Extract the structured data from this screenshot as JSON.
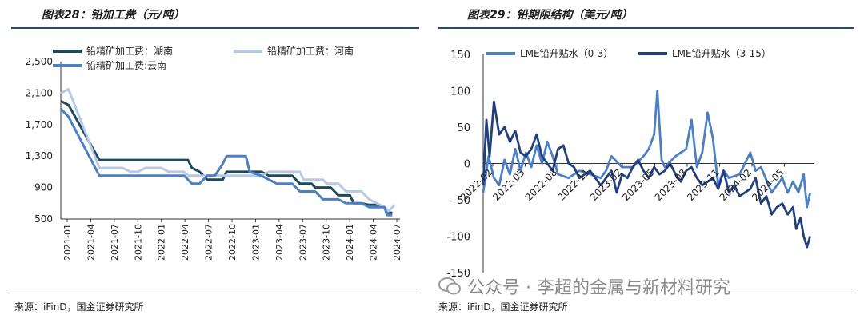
{
  "left": {
    "title": "图表28：铅加工费（元/吨）",
    "source": "来源：iFinD，国金证券研究所"
  },
  "right": {
    "title": "图表29：铅期限结构（美元/吨）",
    "source": "来源：iFinD，国金证券研究所"
  },
  "watermark": {
    "text": "公众号 · 李超的金属与新材料研究"
  },
  "chart_data": [
    {
      "type": "line",
      "title": "图表28：铅加工费（元/吨）",
      "ylim": [
        500,
        2500
      ],
      "yticks": [
        "500",
        "900",
        "1,300",
        "1,700",
        "2,100",
        "2,500"
      ],
      "ytick_values": [
        500,
        900,
        1300,
        1700,
        2100,
        2500
      ],
      "xlim": [
        0,
        44
      ],
      "xticks": [
        "2021-01",
        "2021-04",
        "2021-07",
        "2021-10",
        "2022-01",
        "2022-04",
        "2022-07",
        "2022-10",
        "2023-01",
        "2023-04",
        "2023-07",
        "2023-10",
        "2024-01",
        "2024-04",
        "2024-07"
      ],
      "legend": [
        "铅精矿加工费：湖南",
        "铅精矿加工费：河南",
        "铅精矿加工费:云南"
      ],
      "series": [
        {
          "name": "铅精矿加工费：湖南",
          "color": "#1b4a5c",
          "points": [
            [
              0,
              2000
            ],
            [
              1,
              1950
            ],
            [
              5,
              1250
            ],
            [
              8,
              1250
            ],
            [
              10,
              1250
            ],
            [
              12,
              1250
            ],
            [
              16.5,
              1250
            ],
            [
              17,
              1150
            ],
            [
              18,
              1100
            ],
            [
              19,
              1000
            ],
            [
              21,
              1000
            ],
            [
              21.5,
              1100
            ],
            [
              26,
              1100
            ],
            [
              27,
              1050
            ],
            [
              30,
              1050
            ],
            [
              31,
              950
            ],
            [
              32.5,
              950
            ],
            [
              33,
              900
            ],
            [
              35,
              900
            ],
            [
              36,
              800
            ],
            [
              37.5,
              800
            ],
            [
              38,
              700
            ],
            [
              39,
              700
            ],
            [
              40,
              680
            ],
            [
              41,
              680
            ],
            [
              42,
              650
            ],
            [
              42.5,
              580
            ],
            [
              43,
              580
            ]
          ]
        },
        {
          "name": "铅精矿加工费：河南",
          "color": "#b7c9ea",
          "points": [
            [
              0,
              2100
            ],
            [
              1,
              2150
            ],
            [
              5,
              1150
            ],
            [
              8,
              1150
            ],
            [
              9,
              1100
            ],
            [
              10,
              1100
            ],
            [
              11,
              1150
            ],
            [
              13,
              1150
            ],
            [
              14,
              1100
            ],
            [
              16,
              1100
            ],
            [
              16.5,
              1050
            ],
            [
              26,
              1050
            ],
            [
              27,
              1100
            ],
            [
              31,
              1100
            ],
            [
              31.5,
              1000
            ],
            [
              34,
              1000
            ],
            [
              34.5,
              950
            ],
            [
              36,
              950
            ],
            [
              37,
              850
            ],
            [
              39,
              850
            ],
            [
              39.5,
              800
            ],
            [
              40,
              750
            ],
            [
              41,
              700
            ],
            [
              42,
              650
            ],
            [
              42.5,
              600
            ],
            [
              43.3,
              680
            ]
          ]
        },
        {
          "name": "铅精矿加工费:云南",
          "color": "#4a7fcc",
          "points": [
            [
              0,
              1900
            ],
            [
              1,
              1800
            ],
            [
              5,
              1050
            ],
            [
              8,
              1050
            ],
            [
              16,
              1050
            ],
            [
              17,
              950
            ],
            [
              18,
              950
            ],
            [
              19,
              1050
            ],
            [
              20,
              1050
            ],
            [
              21,
              1200
            ],
            [
              21.5,
              1300
            ],
            [
              24,
              1300
            ],
            [
              24.5,
              1100
            ],
            [
              26,
              1050
            ],
            [
              27,
              1000
            ],
            [
              28,
              950
            ],
            [
              30,
              950
            ],
            [
              31,
              850
            ],
            [
              33,
              850
            ],
            [
              34,
              750
            ],
            [
              36,
              750
            ],
            [
              37,
              700
            ],
            [
              39,
              700
            ],
            [
              40,
              650
            ],
            [
              42,
              650
            ],
            [
              42.3,
              550
            ],
            [
              43,
              550
            ]
          ]
        }
      ]
    },
    {
      "type": "line",
      "title": "图表29：铅期限结构（美元/吨）",
      "ylim": [
        -150,
        150
      ],
      "yticks": [
        "-150",
        "-100",
        "-50",
        "0",
        "50",
        "100",
        "150"
      ],
      "ytick_values": [
        -150,
        -100,
        -50,
        0,
        50,
        100,
        150
      ],
      "xlim": [
        0,
        31
      ],
      "xticks": [
        "2022-02",
        "2022-05",
        "2022-08",
        "2022-11",
        "2023-02",
        "2023-05",
        "2023-08",
        "2023-11",
        "2024-02",
        "2024-05"
      ],
      "legend": [
        "LME铅升贴水（0-3）",
        "LME铅升贴水（3-15）"
      ],
      "series": [
        {
          "name": "LME铅升贴水（0-3）",
          "color": "#4a7fcc",
          "points": [
            [
              0,
              -40
            ],
            [
              0.5,
              10
            ],
            [
              1,
              -20
            ],
            [
              1.5,
              -30
            ],
            [
              2,
              5
            ],
            [
              2.5,
              -15
            ],
            [
              3,
              20
            ],
            [
              3.5,
              -10
            ],
            [
              4,
              15
            ],
            [
              4.5,
              -5
            ],
            [
              5,
              25
            ],
            [
              5.5,
              0
            ],
            [
              6,
              30
            ],
            [
              6.5,
              10
            ],
            [
              7,
              -15
            ],
            [
              8,
              -20
            ],
            [
              9,
              -10
            ],
            [
              10,
              -15
            ],
            [
              11,
              -20
            ],
            [
              11.5,
              -10
            ],
            [
              12,
              10
            ],
            [
              13,
              -5
            ],
            [
              14,
              -5
            ],
            [
              15,
              10
            ],
            [
              15.5,
              20
            ],
            [
              16,
              40
            ],
            [
              16.3,
              100
            ],
            [
              16.7,
              5
            ],
            [
              17,
              -5
            ],
            [
              18,
              10
            ],
            [
              19,
              20
            ],
            [
              19.5,
              60
            ],
            [
              20,
              -5
            ],
            [
              20.5,
              15
            ],
            [
              21,
              70
            ],
            [
              21.5,
              35
            ],
            [
              22,
              -30
            ],
            [
              22.5,
              -10
            ],
            [
              23,
              -20
            ],
            [
              24,
              -15
            ],
            [
              25,
              15
            ],
            [
              25.5,
              -10
            ],
            [
              26,
              -5
            ],
            [
              27,
              -40
            ],
            [
              28,
              -20
            ],
            [
              28.5,
              -40
            ],
            [
              29,
              -25
            ],
            [
              29.5,
              -40
            ],
            [
              30,
              -15
            ],
            [
              30.3,
              -60
            ],
            [
              30.6,
              -40
            ]
          ]
        },
        {
          "name": "LME铅升贴水（3-15）",
          "color": "#1f3f82",
          "points": [
            [
              0,
              -30
            ],
            [
              0.3,
              60
            ],
            [
              0.6,
              10
            ],
            [
              1,
              85
            ],
            [
              1.5,
              40
            ],
            [
              2,
              50
            ],
            [
              2.5,
              30
            ],
            [
              3,
              45
            ],
            [
              3.5,
              15
            ],
            [
              4,
              10
            ],
            [
              4.5,
              20
            ],
            [
              5,
              40
            ],
            [
              5.5,
              10
            ],
            [
              6,
              0
            ],
            [
              6.5,
              -10
            ],
            [
              7,
              20
            ],
            [
              7.5,
              25
            ],
            [
              8,
              0
            ],
            [
              8.5,
              -5
            ],
            [
              9,
              -20
            ],
            [
              9.5,
              -15
            ],
            [
              10,
              -10
            ],
            [
              10.5,
              -20
            ],
            [
              11,
              -30
            ],
            [
              11.5,
              -20
            ],
            [
              12,
              -10
            ],
            [
              12.5,
              -40
            ],
            [
              13,
              -15
            ],
            [
              13.5,
              -20
            ],
            [
              14,
              -5
            ],
            [
              14.5,
              5
            ],
            [
              15,
              -10
            ],
            [
              15.5,
              -20
            ],
            [
              16,
              -5
            ],
            [
              16.5,
              -15
            ],
            [
              17,
              -10
            ],
            [
              17.5,
              0
            ],
            [
              18,
              -15
            ],
            [
              18.5,
              -25
            ],
            [
              19,
              -10
            ],
            [
              19.5,
              -5
            ],
            [
              20,
              -20
            ],
            [
              20.5,
              -30
            ],
            [
              21,
              -25
            ],
            [
              21.5,
              -20
            ],
            [
              22,
              -35
            ],
            [
              22.5,
              -10
            ],
            [
              23,
              -40
            ],
            [
              23.5,
              -30
            ],
            [
              24,
              -45
            ],
            [
              24.5,
              -40
            ],
            [
              25,
              -35
            ],
            [
              25.5,
              -20
            ],
            [
              26,
              -55
            ],
            [
              26.5,
              -45
            ],
            [
              27,
              -70
            ],
            [
              27.5,
              -60
            ],
            [
              28,
              -55
            ],
            [
              28.5,
              -70
            ],
            [
              29,
              -60
            ],
            [
              29.3,
              -90
            ],
            [
              29.7,
              -75
            ],
            [
              30,
              -100
            ],
            [
              30.3,
              -115
            ],
            [
              30.6,
              -100
            ]
          ]
        }
      ]
    }
  ]
}
